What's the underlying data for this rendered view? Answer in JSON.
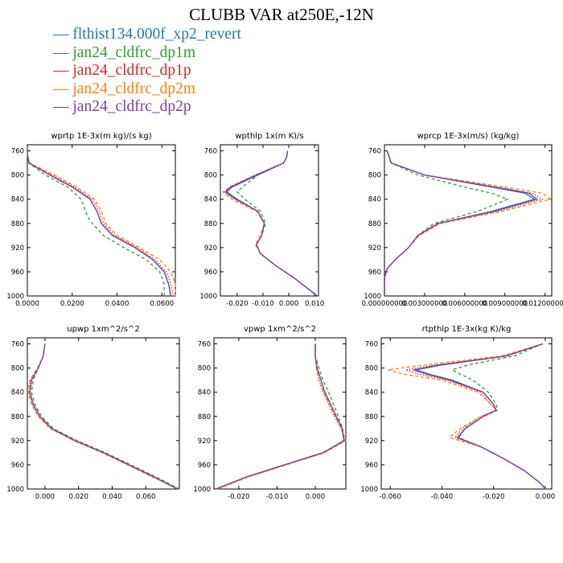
{
  "title": "CLUBB VAR at250E,-12N",
  "legend": [
    {
      "label": "flthist134.000f_xp2_revert",
      "color": "#1f77b4",
      "dash": "solid"
    },
    {
      "label": "jan24_cldfrc_dp1m",
      "color": "#2ca02c",
      "dash": "dashed"
    },
    {
      "label": "jan24_cldfrc_dp1p",
      "color": "#d62728",
      "dash": "dotted"
    },
    {
      "label": "jan24_cldfrc_dp2m",
      "color": "#ff7f0e",
      "dash": "dashed"
    },
    {
      "label": "jan24_cldfrc_dp2p",
      "color": "#7b3fa0",
      "dash": "solid"
    }
  ],
  "chart_data": [
    {
      "type": "line",
      "title": "wprtp  1E-3x(m kg)/(s kg)",
      "ylim": [
        1000,
        750
      ],
      "xlim": [
        0,
        0.066
      ],
      "yticks": [
        760,
        800,
        840,
        880,
        920,
        960,
        1000
      ],
      "xticks": [
        0,
        0.02,
        0.04,
        0.06
      ],
      "xticklabels": [
        "0.0000",
        "0.0200",
        "0.0400",
        "0.0600"
      ],
      "y": [
        760,
        770,
        780,
        800,
        820,
        840,
        860,
        870,
        880,
        900,
        920,
        940,
        960,
        980,
        1000
      ],
      "series": [
        {
          "values": [
            0.0,
            0.0002,
            0.0008,
            0.01,
            0.02,
            0.028,
            0.031,
            0.032,
            0.033,
            0.038,
            0.048,
            0.056,
            0.061,
            0.063,
            0.064
          ]
        },
        {
          "values": [
            0.0,
            0.0002,
            0.0006,
            0.008,
            0.018,
            0.024,
            0.026,
            0.027,
            0.029,
            0.034,
            0.043,
            0.053,
            0.059,
            0.061,
            0.061
          ]
        },
        {
          "values": [
            0.0,
            0.0002,
            0.0008,
            0.011,
            0.021,
            0.029,
            0.032,
            0.033,
            0.034,
            0.039,
            0.049,
            0.057,
            0.062,
            0.064,
            0.065
          ]
        },
        {
          "values": [
            0.0,
            0.0002,
            0.0009,
            0.012,
            0.022,
            0.03,
            0.033,
            0.034,
            0.035,
            0.04,
            0.05,
            0.059,
            0.064,
            0.066,
            0.066
          ]
        },
        {
          "values": [
            0.0,
            0.0002,
            0.0008,
            0.01,
            0.02,
            0.028,
            0.031,
            0.032,
            0.033,
            0.038,
            0.048,
            0.056,
            0.061,
            0.063,
            0.064
          ]
        }
      ]
    },
    {
      "type": "line",
      "title": "wpthlp  1x(m K)/s",
      "ylim": [
        1000,
        750
      ],
      "xlim": [
        -0.0265,
        0.0115
      ],
      "yticks": [
        760,
        800,
        840,
        880,
        920,
        960,
        1000
      ],
      "xticks": [
        -0.02,
        -0.01,
        0,
        0.01
      ],
      "xticklabels": [
        "-0.020",
        "-0.010",
        "0.000",
        "0.010"
      ],
      "y": [
        760,
        770,
        780,
        800,
        820,
        828,
        840,
        860,
        880,
        900,
        915,
        930,
        950,
        970,
        990,
        1000
      ],
      "series": [
        {
          "values": [
            -0.0005,
            -0.0008,
            -0.002,
            -0.012,
            -0.022,
            -0.024,
            -0.02,
            -0.012,
            -0.0095,
            -0.0105,
            -0.0125,
            -0.011,
            -0.005,
            0.002,
            0.008,
            0.011
          ]
        },
        {
          "values": [
            -0.0005,
            -0.0008,
            -0.002,
            -0.012,
            -0.018,
            -0.02,
            -0.017,
            -0.011,
            -0.009,
            -0.0105,
            -0.0125,
            -0.011,
            -0.005,
            0.002,
            0.008,
            0.011
          ]
        },
        {
          "values": [
            -0.0005,
            -0.0008,
            -0.002,
            -0.013,
            -0.023,
            -0.025,
            -0.021,
            -0.012,
            -0.0095,
            -0.0105,
            -0.0125,
            -0.011,
            -0.005,
            0.002,
            0.008,
            0.011
          ]
        },
        {
          "values": [
            -0.0005,
            -0.0008,
            -0.002,
            -0.013,
            -0.023,
            -0.0255,
            -0.022,
            -0.0125,
            -0.0095,
            -0.011,
            -0.013,
            -0.011,
            -0.005,
            0.002,
            0.008,
            0.011
          ]
        },
        {
          "values": [
            -0.0005,
            -0.0008,
            -0.002,
            -0.0125,
            -0.0225,
            -0.0245,
            -0.0205,
            -0.012,
            -0.0095,
            -0.0105,
            -0.0125,
            -0.011,
            -0.005,
            0.002,
            0.008,
            0.011
          ]
        }
      ]
    },
    {
      "type": "line",
      "title": "wprcp  1E-3x(m/s) (kg/kg)",
      "ylim": [
        1000,
        750
      ],
      "xlim": [
        0,
        0.0125
      ],
      "yticks": [
        760,
        800,
        840,
        880,
        920,
        960,
        1000
      ],
      "xticks": [
        0,
        0.003,
        0.006,
        0.009,
        0.012
      ],
      "xticklabels": [
        "0.000000000",
        "0.003000000",
        "0.006000000",
        "0.009000000",
        "0.012000000"
      ],
      "y": [
        760,
        780,
        800,
        820,
        830,
        840,
        860,
        880,
        900,
        920,
        940,
        955,
        970,
        1000
      ],
      "series": [
        {
          "values": [
            0.0002,
            0.0005,
            0.003,
            0.008,
            0.0105,
            0.0112,
            0.008,
            0.004,
            0.0025,
            0.0018,
            0.0008,
            0.0002,
            0.0,
            0.0
          ]
        },
        {
          "values": [
            0.0002,
            0.0005,
            0.0025,
            0.006,
            0.008,
            0.0092,
            0.007,
            0.0037,
            0.0025,
            0.0018,
            0.0008,
            0.0002,
            0.0,
            0.0
          ]
        },
        {
          "values": [
            0.0002,
            0.0005,
            0.003,
            0.0085,
            0.011,
            0.0118,
            0.0085,
            0.0041,
            0.0025,
            0.0018,
            0.0008,
            0.0002,
            0.0,
            0.0
          ]
        },
        {
          "values": [
            0.0002,
            0.0005,
            0.003,
            0.009,
            0.0118,
            0.0124,
            0.0088,
            0.0042,
            0.0026,
            0.0018,
            0.0008,
            0.0002,
            0.0,
            0.0
          ]
        },
        {
          "values": [
            0.0002,
            0.0005,
            0.003,
            0.0082,
            0.0108,
            0.0114,
            0.0082,
            0.004,
            0.0025,
            0.0018,
            0.0008,
            0.0002,
            0.0,
            0.0
          ]
        }
      ]
    },
    {
      "type": "line",
      "title": "upwp  1xm^2/s^2",
      "ylim": [
        1000,
        750
      ],
      "xlim": [
        -0.0105,
        0.08
      ],
      "yticks": [
        760,
        800,
        840,
        880,
        920,
        960,
        1000
      ],
      "xticks": [
        0,
        0.02,
        0.04,
        0.06
      ],
      "xticklabels": [
        "0.000",
        "0.020",
        "0.040",
        "0.060"
      ],
      "y": [
        760,
        780,
        800,
        820,
        840,
        860,
        880,
        900,
        920,
        940,
        960,
        980,
        1000
      ],
      "series": [
        {
          "values": [
            0.0,
            -0.001,
            -0.004,
            -0.008,
            -0.009,
            -0.007,
            -0.003,
            0.004,
            0.018,
            0.035,
            0.05,
            0.065,
            0.079
          ]
        },
        {
          "values": [
            0.0,
            -0.001,
            -0.004,
            -0.007,
            -0.008,
            -0.006,
            -0.002,
            0.005,
            0.019,
            0.036,
            0.051,
            0.066,
            0.08
          ]
        },
        {
          "values": [
            0.0,
            -0.001,
            -0.004,
            -0.0085,
            -0.0095,
            -0.0075,
            -0.0035,
            0.0035,
            0.0175,
            0.0345,
            0.0495,
            0.0645,
            0.079
          ]
        },
        {
          "values": [
            0.0,
            -0.001,
            -0.0045,
            -0.009,
            -0.0102,
            -0.008,
            -0.004,
            0.003,
            0.017,
            0.034,
            0.049,
            0.064,
            0.079
          ]
        },
        {
          "values": [
            0.0,
            -0.001,
            -0.004,
            -0.008,
            -0.009,
            -0.007,
            -0.003,
            0.004,
            0.018,
            0.035,
            0.05,
            0.065,
            0.079
          ]
        }
      ]
    },
    {
      "type": "line",
      "title": "vpwp  1xm^2/s^2",
      "ylim": [
        1000,
        750
      ],
      "xlim": [
        -0.0265,
        0.008
      ],
      "yticks": [
        760,
        800,
        840,
        880,
        920,
        960,
        1000
      ],
      "xticks": [
        -0.02,
        -0.01,
        0
      ],
      "xticklabels": [
        "-0.020",
        "-0.010",
        "0.000"
      ],
      "y": [
        760,
        780,
        800,
        820,
        840,
        860,
        880,
        900,
        920,
        940,
        960,
        980,
        1000
      ],
      "series": [
        {
          "values": [
            0.0,
            0.0,
            0.0005,
            0.0015,
            0.0025,
            0.004,
            0.0055,
            0.007,
            0.0075,
            0.002,
            -0.008,
            -0.018,
            -0.026
          ]
        },
        {
          "values": [
            0.0,
            0.0,
            0.001,
            0.002,
            0.0035,
            0.0048,
            0.006,
            0.0072,
            0.0075,
            0.002,
            -0.008,
            -0.018,
            -0.026
          ]
        },
        {
          "values": [
            0.0,
            0.0,
            0.0003,
            0.001,
            0.002,
            0.0035,
            0.005,
            0.0068,
            0.0078,
            0.0022,
            -0.0078,
            -0.0178,
            -0.0258
          ]
        },
        {
          "values": [
            0.0,
            0.0,
            0.0003,
            0.001,
            0.0022,
            0.0038,
            0.0052,
            0.0068,
            0.008,
            0.0025,
            -0.0075,
            -0.0175,
            -0.0255
          ]
        },
        {
          "values": [
            0.0,
            0.0,
            0.0005,
            0.0015,
            0.0025,
            0.004,
            0.0055,
            0.007,
            0.0076,
            0.002,
            -0.008,
            -0.018,
            -0.026
          ]
        }
      ]
    },
    {
      "type": "line",
      "title": "rtpthlp  1E-3x(kg K)/kg",
      "ylim": [
        1000,
        750
      ],
      "xlim": [
        -0.0635,
        0.0025
      ],
      "yticks": [
        760,
        800,
        840,
        880,
        920,
        960,
        1000
      ],
      "xticks": [
        -0.06,
        -0.04,
        -0.02,
        0
      ],
      "xticklabels": [
        "-0.060",
        "-0.040",
        "-0.020",
        "0.000"
      ],
      "y": [
        760,
        780,
        795,
        803,
        810,
        820,
        840,
        860,
        870,
        880,
        900,
        915,
        930,
        950,
        970,
        990,
        1000
      ],
      "series": [
        {
          "values": [
            -0.001,
            -0.015,
            -0.04,
            -0.05,
            -0.045,
            -0.036,
            -0.024,
            -0.02,
            -0.019,
            -0.024,
            -0.031,
            -0.034,
            -0.025,
            -0.016,
            -0.008,
            -0.002,
            0.0
          ]
        },
        {
          "values": [
            -0.001,
            -0.012,
            -0.03,
            -0.036,
            -0.033,
            -0.028,
            -0.022,
            -0.019,
            -0.0185,
            -0.024,
            -0.031,
            -0.0335,
            -0.025,
            -0.016,
            -0.008,
            -0.002,
            0.0
          ]
        },
        {
          "values": [
            -0.001,
            -0.016,
            -0.043,
            -0.054,
            -0.049,
            -0.038,
            -0.025,
            -0.021,
            -0.019,
            -0.025,
            -0.032,
            -0.035,
            -0.025,
            -0.016,
            -0.008,
            -0.002,
            0.0
          ]
        },
        {
          "values": [
            -0.001,
            -0.017,
            -0.047,
            -0.061,
            -0.055,
            -0.04,
            -0.026,
            -0.021,
            -0.019,
            -0.025,
            -0.033,
            -0.037,
            -0.025,
            -0.016,
            -0.008,
            -0.002,
            0.0
          ]
        },
        {
          "values": [
            -0.001,
            -0.015,
            -0.041,
            -0.051,
            -0.046,
            -0.037,
            -0.024,
            -0.02,
            -0.019,
            -0.024,
            -0.031,
            -0.034,
            -0.025,
            -0.016,
            -0.008,
            -0.002,
            0.0
          ]
        }
      ]
    }
  ]
}
